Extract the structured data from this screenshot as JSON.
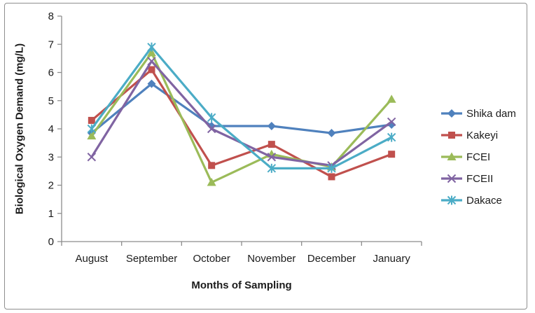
{
  "chart_data": {
    "type": "line",
    "title": "",
    "xlabel": "Months of Sampling",
    "ylabel": "Biological Oxygen Demand (mg/L)",
    "categories": [
      "August",
      "September",
      "October",
      "November",
      "December",
      "January"
    ],
    "yticks": [
      0,
      1,
      2,
      3,
      4,
      5,
      6,
      7,
      8
    ],
    "ylim": [
      0,
      8
    ],
    "grid": false,
    "legend_position": "right",
    "axis_color": "#8c8c8c",
    "text_color": "#1b1b1b",
    "frame_border_color": "#8f8f8f",
    "series": [
      {
        "name": "Shika dam",
        "color": "#4F81BD",
        "marker": "diamond",
        "values": [
          3.85,
          5.6,
          4.1,
          4.1,
          3.85,
          4.15
        ]
      },
      {
        "name": "Kakeyi",
        "color": "#C0504D",
        "marker": "square",
        "values": [
          4.3,
          6.1,
          2.7,
          3.45,
          2.3,
          3.1
        ]
      },
      {
        "name": "FCEI",
        "color": "#9BBB59",
        "marker": "triangle",
        "values": [
          3.75,
          6.7,
          2.1,
          3.1,
          2.65,
          5.05
        ]
      },
      {
        "name": "FCEII",
        "color": "#8064A2",
        "marker": "x",
        "values": [
          3.0,
          6.4,
          4.0,
          3.0,
          2.7,
          4.25
        ]
      },
      {
        "name": "Dakace",
        "color": "#4BACC6",
        "marker": "asterisk",
        "values": [
          4.0,
          6.9,
          4.4,
          2.6,
          2.6,
          3.7
        ]
      }
    ]
  }
}
